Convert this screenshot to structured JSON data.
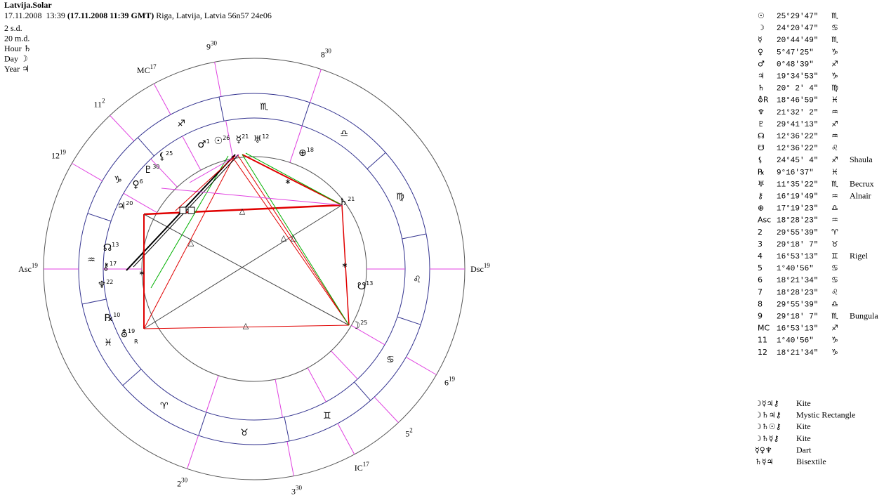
{
  "header": {
    "title": "Latvija.Solar",
    "date": "17.11.2008  13:39",
    "gmt": "(17.11.2008  11:39 GMT)",
    "place": "Riga, Latvija, Latvia 56n57  24e06",
    "lines": [
      "2 s.d.",
      "20 m.d.",
      "Hour ♄",
      "Day ☽",
      "Year ♃"
    ]
  },
  "chart": {
    "houses": [
      {
        "label": "Asc",
        "degree": 19
      },
      {
        "label": "2",
        "degree": 30
      },
      {
        "label": "3",
        "degree": 30
      },
      {
        "label": "IC",
        "degree": 17
      },
      {
        "label": "5",
        "degree": 2
      },
      {
        "label": "6",
        "degree": 19
      },
      {
        "label": "Dsc",
        "degree": 19
      },
      {
        "label": "8",
        "degree": 30
      },
      {
        "label": "9",
        "degree": 30
      },
      {
        "label": "MC",
        "degree": 17
      },
      {
        "label": "11",
        "degree": 2
      },
      {
        "label": "12",
        "degree": 19
      }
    ],
    "signs": [
      "♈",
      "♉",
      "♊",
      "♋",
      "♌",
      "♍",
      "♎",
      "♏",
      "♐",
      "♑",
      "♒",
      "♓"
    ],
    "planets": [
      {
        "glyph": "♂",
        "degree": 1
      },
      {
        "glyph": "☉",
        "degree": 26
      },
      {
        "glyph": "☿",
        "degree": 21
      },
      {
        "glyph": "♅",
        "degree": 12
      },
      {
        "glyph": "⊕",
        "degree": 18
      },
      {
        "glyph": "♄",
        "degree": 21
      },
      {
        "glyph": "☋",
        "degree": 13
      },
      {
        "glyph": "☽",
        "degree": 25
      },
      {
        "glyph": "⛢",
        "degree": 19,
        "retro": "R"
      },
      {
        "glyph": "℞",
        "degree": 10
      },
      {
        "glyph": "♆",
        "degree": 22
      },
      {
        "glyph": "⚷",
        "degree": 17
      },
      {
        "glyph": "☊",
        "degree": 13
      },
      {
        "glyph": "♃",
        "degree": 20
      },
      {
        "glyph": "♀",
        "degree": 6
      },
      {
        "glyph": "♇",
        "degree": 30
      },
      {
        "glyph": "⚸",
        "degree": 25
      }
    ],
    "aspects": [
      {
        "symbol": "△"
      },
      {
        "symbol": "△"
      },
      {
        "symbol": "∗"
      },
      {
        "symbol": "∗"
      },
      {
        "symbol": "∗"
      },
      {
        "symbol": "△"
      },
      {
        "symbol": "△"
      },
      {
        "symbol": "△"
      }
    ]
  },
  "positions": [
    {
      "glyph": "☉",
      "position": "25°29'47\"",
      "sign": "♏"
    },
    {
      "glyph": "☽",
      "position": "24°20'47\"",
      "sign": "♋"
    },
    {
      "glyph": "☿",
      "position": "20°44'49\"",
      "sign": "♏"
    },
    {
      "glyph": "♀",
      "position": " 5°47'25\"",
      "sign": "♑"
    },
    {
      "glyph": "♂",
      "position": " 0°48'39\"",
      "sign": "♐"
    },
    {
      "glyph": "♃",
      "position": "19°34'53\"",
      "sign": "♑"
    },
    {
      "glyph": "♄",
      "position": "20° 2' 4\"",
      "sign": "♍"
    },
    {
      "glyph": "⛢R",
      "position": "18°46'59\"",
      "sign": "♓"
    },
    {
      "glyph": "♆",
      "position": "21°32' 2\"",
      "sign": "♒"
    },
    {
      "glyph": "♇",
      "position": "29°41'13\"",
      "sign": "♐"
    },
    {
      "glyph": "☊",
      "position": "12°36'22\"",
      "sign": "♒"
    },
    {
      "glyph": "☋",
      "position": "12°36'22\"",
      "sign": "♌"
    },
    {
      "glyph": "⚸",
      "position": "24°45' 4\"",
      "sign": "♐",
      "star": "Shaula"
    },
    {
      "glyph": "℞",
      "position": " 9°16'37\"",
      "sign": "♓"
    },
    {
      "glyph": "♅",
      "position": "11°35'22\"",
      "sign": "♏",
      "star": "Becrux"
    },
    {
      "glyph": "⚷",
      "position": "16°19'49\"",
      "sign": "♒",
      "star": "Alnair"
    },
    {
      "glyph": "⊕",
      "position": "17°19'23\"",
      "sign": "♎"
    },
    {
      "glyph": "Asc",
      "position": "18°28'23\"",
      "sign": "♒"
    },
    {
      "glyph": "2",
      "position": "29°55'39\"",
      "sign": "♈"
    },
    {
      "glyph": "3",
      "position": "29°18' 7\"",
      "sign": "♉"
    },
    {
      "glyph": "4",
      "position": "16°53'13\"",
      "sign": "♊",
      "star": "Rigel"
    },
    {
      "glyph": "5",
      "position": " 1°40'56\"",
      "sign": "♋"
    },
    {
      "glyph": "6",
      "position": "18°21'34\"",
      "sign": "♋"
    },
    {
      "glyph": "7",
      "position": "18°28'23\"",
      "sign": "♌"
    },
    {
      "glyph": "8",
      "position": "29°55'39\"",
      "sign": "♎"
    },
    {
      "glyph": "9",
      "position": "29°18' 7\"",
      "sign": "♏",
      "star": "Bungula"
    },
    {
      "glyph": "MC",
      "position": "16°53'13\"",
      "sign": "♐"
    },
    {
      "glyph": "11",
      "position": " 1°40'56\"",
      "sign": "♑"
    },
    {
      "glyph": "12",
      "position": "18°21'34\"",
      "sign": "♑"
    }
  ],
  "patterns": [
    {
      "glyphs": "☽☿♃⚷",
      "name": "Kite"
    },
    {
      "glyphs": "☽♄♃⚷",
      "name": "Mystic Rectangle"
    },
    {
      "glyphs": "☽♄☉⚷",
      "name": "Kite"
    },
    {
      "glyphs": "☽♄☿⚷",
      "name": "Kite"
    },
    {
      "glyphs": "☿♀♆",
      "name": "Dart"
    },
    {
      "glyphs": "♄☿♃",
      "name": "Bisextile"
    }
  ]
}
